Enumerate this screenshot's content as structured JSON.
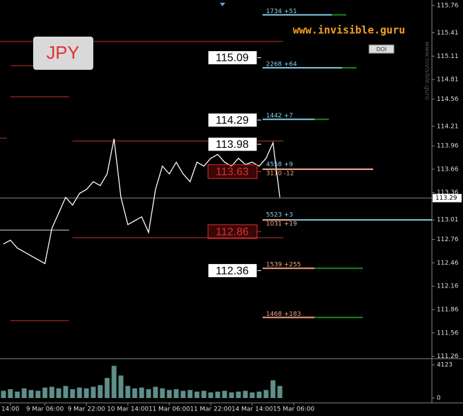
{
  "chart_data": {
    "type": "line",
    "title": "JPY",
    "watermark": "www.invisible.guru",
    "button": "DOI",
    "categories": [
      null,
      "14:00",
      null,
      null,
      null,
      null,
      "9 Mar 06:00",
      null,
      null,
      null,
      null,
      null,
      "9 Mar 22:00",
      null,
      null,
      null,
      null,
      null,
      "10 Mar 14:00",
      null,
      null,
      null,
      null,
      null,
      "11 Mar 06:00",
      null,
      null,
      null,
      null,
      null,
      "11 Mar 22:00",
      null,
      null,
      null,
      null,
      null,
      "14 Mar 14:00",
      null,
      null,
      null,
      null,
      null,
      "15 Mar 06:00"
    ],
    "series": [
      {
        "name": "close",
        "color": "#ffffff",
        "values": [
          112.7,
          112.75,
          112.65,
          112.6,
          112.55,
          112.5,
          112.45,
          112.9,
          113.1,
          113.3,
          113.2,
          113.35,
          113.4,
          113.5,
          113.45,
          113.6,
          114.05,
          113.3,
          112.95,
          113.0,
          113.05,
          112.85,
          113.4,
          113.7,
          113.6,
          113.75,
          113.6,
          113.5,
          113.75,
          113.7,
          113.8,
          113.85,
          113.75,
          113.7,
          113.8,
          113.72,
          113.75,
          113.7,
          113.8,
          114.0,
          113.3,
          null,
          null
        ]
      }
    ],
    "volume": {
      "color": "#5f8f8a",
      "values": [
        900,
        1100,
        800,
        1200,
        1000,
        900,
        1300,
        1400,
        1200,
        1500,
        1100,
        1300,
        1200,
        1400,
        1600,
        2500,
        4000,
        2800,
        1500,
        1200,
        1300,
        1100,
        1400,
        1200,
        1000,
        1100,
        900,
        1000,
        800,
        900,
        700,
        800,
        900,
        700,
        800,
        900,
        700,
        800,
        1000,
        2200,
        1500,
        null,
        null
      ],
      "ylim": [
        0,
        4123
      ],
      "yticks": [
        0,
        4123
      ]
    },
    "ylim": [
      111.24,
      115.83
    ],
    "yticks": [
      115.76,
      115.41,
      115.11,
      114.81,
      114.56,
      114.21,
      113.96,
      113.66,
      113.36,
      113.01,
      112.76,
      112.46,
      112.16,
      111.86,
      111.56,
      111.26
    ],
    "current_price": 113.29,
    "levels": [
      {
        "value": 115.09,
        "color": "white"
      },
      {
        "value": 114.29,
        "color": "white"
      },
      {
        "value": 113.98,
        "color": "white"
      },
      {
        "value": 113.63,
        "color": "red"
      },
      {
        "value": 112.86,
        "color": "red"
      },
      {
        "value": 112.36,
        "color": "white"
      }
    ],
    "annotations": [
      {
        "label": "1734 +51",
        "price": 115.64,
        "color": "#87ceeb"
      },
      {
        "label": "2268 +64",
        "price": 114.96,
        "color": "#87ceeb"
      },
      {
        "label": "1442 +7",
        "price": 114.3,
        "color": "#87ceeb"
      },
      {
        "label": "4558 +9",
        "price": 113.66,
        "color": "#87ceeb"
      },
      {
        "label": "3110 -12",
        "price": 113.66,
        "color": "#f4a582"
      },
      {
        "label": "5523 +3",
        "price": 113.01,
        "color": "#87ceeb"
      },
      {
        "label": "1031 +19",
        "price": 113.01,
        "color": "#f4a582"
      },
      {
        "label": "1539 +255",
        "price": 112.39,
        "color": "#f4a582"
      },
      {
        "label": "1468 +183",
        "price": 111.76,
        "color": "#f4a582"
      }
    ]
  }
}
